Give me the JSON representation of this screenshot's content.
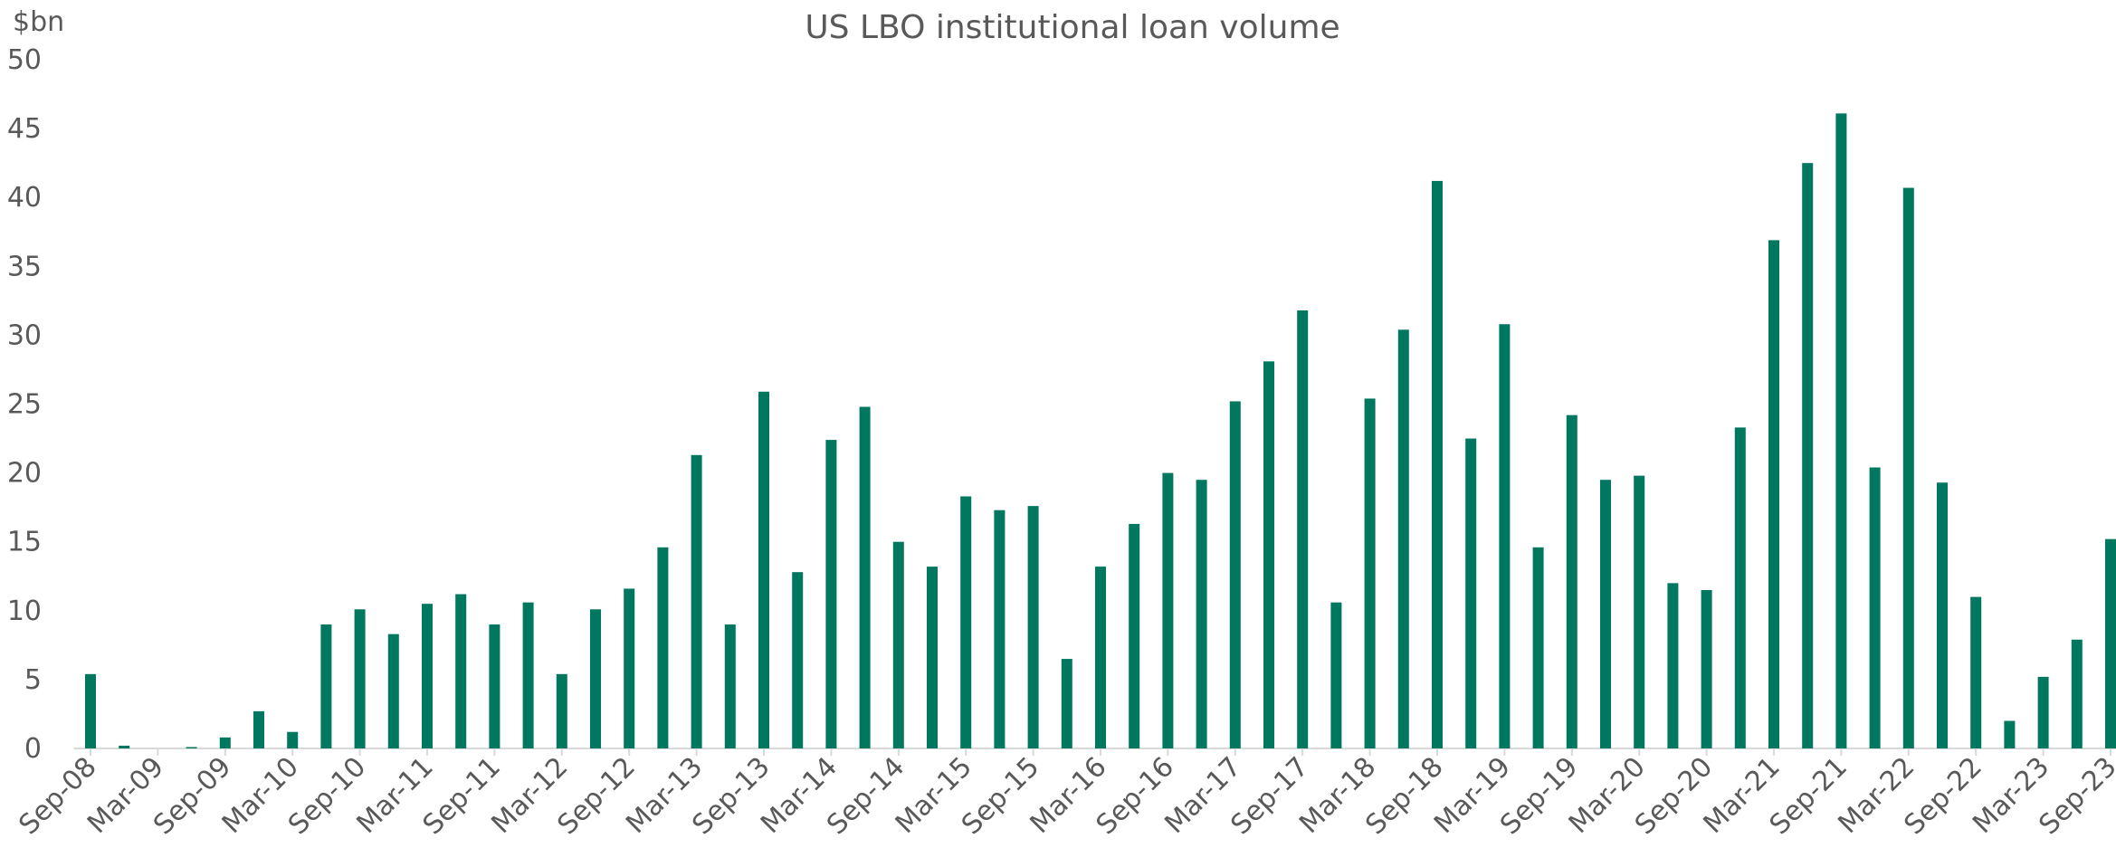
{
  "chart_data": {
    "type": "bar",
    "title": "US LBO institutional loan volume",
    "y_label": "$bn",
    "categories": [
      "Sep-08",
      null,
      "Mar-09",
      null,
      "Sep-09",
      null,
      "Mar-10",
      null,
      "Sep-10",
      null,
      "Mar-11",
      null,
      "Sep-11",
      null,
      "Mar-12",
      null,
      "Sep-12",
      null,
      "Mar-13",
      null,
      "Sep-13",
      null,
      "Mar-14",
      null,
      "Sep-14",
      null,
      "Mar-15",
      null,
      "Sep-15",
      null,
      "Mar-16",
      null,
      "Sep-16",
      null,
      "Mar-17",
      null,
      "Sep-17",
      null,
      "Mar-18",
      null,
      "Sep-18",
      null,
      "Mar-19",
      null,
      "Sep-19",
      null,
      "Mar-20",
      null,
      "Sep-20",
      null,
      "Mar-21",
      null,
      "Sep-21",
      null,
      "Mar-22",
      null,
      "Sep-22",
      null,
      "Mar-23",
      null,
      "Sep-23"
    ],
    "values": [
      5.4,
      0.2,
      0,
      0.1,
      0.8,
      2.7,
      1.2,
      9.0,
      10.1,
      8.3,
      10.5,
      11.2,
      9.0,
      10.6,
      5.4,
      10.1,
      11.6,
      14.6,
      21.3,
      9.0,
      25.9,
      12.8,
      22.4,
      24.8,
      15.0,
      13.2,
      18.3,
      17.3,
      17.6,
      6.5,
      13.2,
      16.3,
      20.0,
      19.5,
      25.2,
      28.1,
      31.8,
      10.6,
      25.4,
      30.4,
      41.2,
      22.5,
      30.8,
      14.6,
      24.2,
      19.5,
      19.8,
      12.0,
      11.5,
      23.3,
      36.9,
      42.5,
      46.1,
      20.4,
      40.7,
      19.3,
      11.0,
      2.0,
      5.2,
      7.9,
      15.2
    ],
    "color": "#00785f",
    "ylim": [
      0,
      50
    ],
    "yticks": [
      0,
      5,
      10,
      15,
      20,
      25,
      30,
      35,
      40,
      45,
      50
    ],
    "grid": false
  }
}
